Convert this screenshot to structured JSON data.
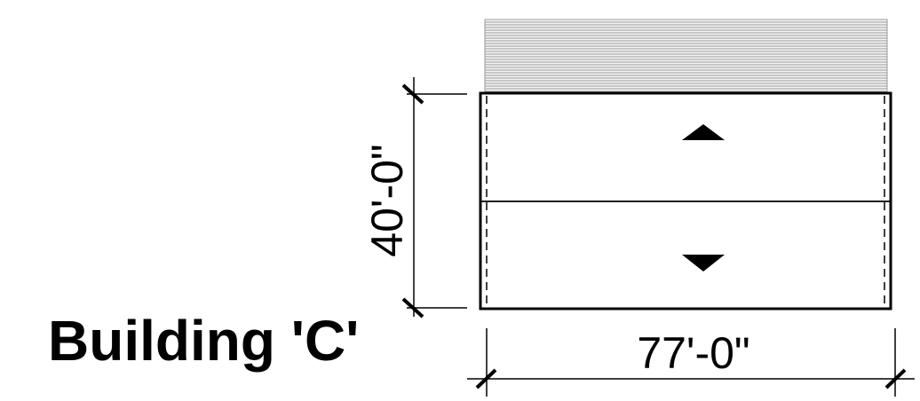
{
  "building": {
    "title": "Building 'C'"
  },
  "dimensions": {
    "depth": "40'-0\"",
    "width": "77'-0\""
  },
  "colors": {
    "line": "#000000",
    "hatch": "#9a9a9a",
    "background": "#ffffff"
  }
}
